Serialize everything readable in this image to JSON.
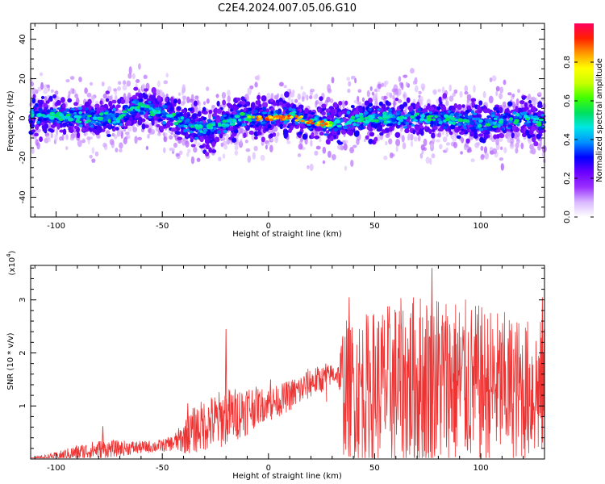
{
  "title": "C2E4.2024.007.05.06.G10",
  "charts": [
    {
      "type": "heatmap",
      "xlabel": "Height of straight line (km)",
      "ylabel": "Frequency (Hz)",
      "xlim": [
        -112,
        130
      ],
      "ylim": [
        -50,
        48
      ],
      "x_ticks": [
        -100,
        -50,
        0,
        50,
        100
      ],
      "y_ticks": [
        -40,
        -20,
        0,
        20,
        40
      ],
      "colorbar": {
        "label": "Normalized spectral amplitude",
        "range": [
          0.0,
          1.0
        ],
        "ticks": [
          0.0,
          0.2,
          0.4,
          0.6,
          0.8
        ],
        "tick_labels": [
          "0.0",
          "0.2",
          "0.4",
          "0.6",
          "0.8"
        ],
        "colors": [
          "#ffffff",
          "#d9b8ff",
          "#9b30ff",
          "#6a00ff",
          "#0000ff",
          "#0090ff",
          "#00e5e5",
          "#00e060",
          "#40ff00",
          "#c8ff00",
          "#ffff00",
          "#ff9900",
          "#ff2000",
          "#ff0060"
        ]
      },
      "ridge": {
        "x": [
          -112,
          -90,
          -70,
          -62,
          -50,
          -40,
          -30,
          -20,
          -10,
          0,
          10,
          20,
          30,
          40,
          50,
          60,
          70,
          80,
          90,
          100,
          110,
          120,
          130
        ],
        "y": [
          2,
          0,
          0,
          6,
          3,
          -2,
          -6,
          -2,
          1,
          0,
          1,
          -2,
          -3,
          -1,
          0,
          0,
          0,
          0,
          -1,
          -2,
          -2,
          0,
          -2
        ]
      }
    },
    {
      "type": "line",
      "xlabel": "Height of straight line (km)",
      "ylabel": "SNR (10 * v/v)",
      "y_multiplier": "(x10",
      "y_multiplier_exp": "4",
      "y_multiplier_close": ")",
      "xlim": [
        -112,
        130
      ],
      "ylim": [
        0,
        3.65
      ],
      "x_ticks": [
        -100,
        -50,
        0,
        50,
        100
      ],
      "y_ticks": [
        1,
        2,
        3
      ],
      "series_color": "#ee3333",
      "envelope": {
        "x": [
          -112,
          -100,
          -90,
          -80,
          -70,
          -60,
          -50,
          -45,
          -40,
          -35,
          -30,
          -25,
          -20,
          -15,
          -10,
          -5,
          0,
          5,
          10,
          15,
          20,
          25,
          30,
          33,
          35,
          40,
          50,
          60,
          70,
          80,
          90,
          100,
          110,
          120,
          130
        ],
        "base": [
          0.0,
          0.05,
          0.12,
          0.18,
          0.2,
          0.22,
          0.25,
          0.3,
          0.4,
          0.55,
          0.65,
          0.7,
          0.8,
          0.85,
          0.95,
          1.0,
          1.05,
          1.1,
          1.2,
          1.3,
          1.45,
          1.5,
          1.6,
          1.6,
          1.35,
          1.3,
          1.35,
          1.4,
          1.45,
          1.5,
          1.45,
          1.4,
          1.35,
          1.3,
          1.3
        ],
        "spread": [
          0.02,
          0.08,
          0.15,
          0.18,
          0.15,
          0.12,
          0.12,
          0.15,
          0.3,
          0.45,
          0.5,
          0.55,
          0.55,
          0.5,
          0.5,
          0.35,
          0.3,
          0.3,
          0.3,
          0.3,
          0.3,
          0.25,
          0.2,
          0.2,
          1.3,
          1.35,
          1.5,
          1.6,
          1.7,
          1.7,
          1.6,
          1.5,
          1.45,
          1.35,
          1.35
        ]
      },
      "peaks": [
        {
          "x": -78,
          "y": 0.62
        },
        {
          "x": -38,
          "y": 1.05
        },
        {
          "x": -20,
          "y": 2.45
        },
        {
          "x": 1,
          "y": 1.5
        },
        {
          "x": 27,
          "y": 1.8
        },
        {
          "x": 38,
          "y": 3.05
        },
        {
          "x": 77,
          "y": 3.6
        },
        {
          "x": 129,
          "y": 3.05
        }
      ]
    }
  ]
}
